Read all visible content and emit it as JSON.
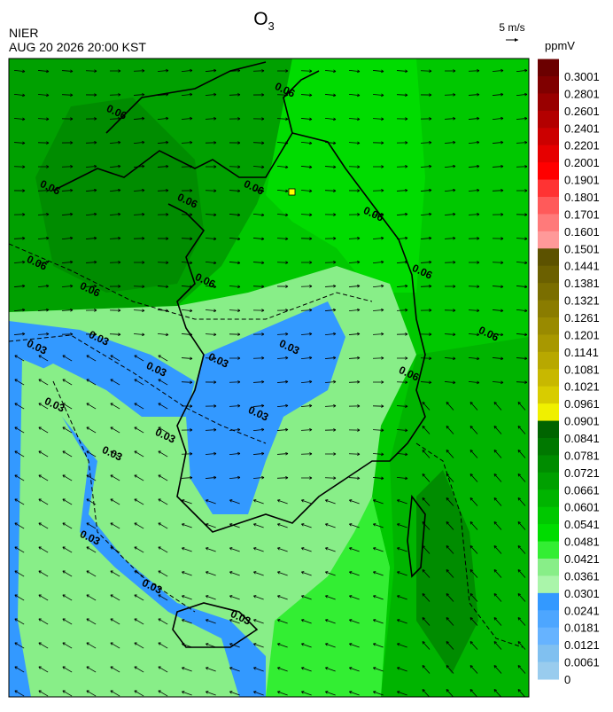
{
  "header": {
    "title": {
      "main": "O",
      "subscript": "3"
    },
    "agency": "NIER",
    "datetime": "AUG 20 2026 20:00 KST",
    "wind_scale": "5 m/s"
  },
  "legend": {
    "unit": "ppmV",
    "levels": [
      {
        "label": "0.3001",
        "color": "#6b0000"
      },
      {
        "label": "0.2801",
        "color": "#800000"
      },
      {
        "label": "0.2601",
        "color": "#990000"
      },
      {
        "label": "0.2401",
        "color": "#b30000"
      },
      {
        "label": "0.2201",
        "color": "#cc0000"
      },
      {
        "label": "0.2001",
        "color": "#e60000"
      },
      {
        "label": "0.1901",
        "color": "#ff0000"
      },
      {
        "label": "0.1801",
        "color": "#ff3333"
      },
      {
        "label": "0.1701",
        "color": "#ff5a5a"
      },
      {
        "label": "0.1601",
        "color": "#ff7a7a"
      },
      {
        "label": "0.1501",
        "color": "#ff9999"
      },
      {
        "label": "0.1441",
        "color": "#5c5200"
      },
      {
        "label": "0.1381",
        "color": "#6b6000"
      },
      {
        "label": "0.1321",
        "color": "#7a6e00"
      },
      {
        "label": "0.1261",
        "color": "#8a7c00"
      },
      {
        "label": "0.1201",
        "color": "#998a00"
      },
      {
        "label": "0.1141",
        "color": "#a89800"
      },
      {
        "label": "0.1081",
        "color": "#b8a800"
      },
      {
        "label": "0.1021",
        "color": "#c8b800"
      },
      {
        "label": "0.0961",
        "color": "#d8cc00"
      },
      {
        "label": "0.0901",
        "color": "#f0f000"
      },
      {
        "label": "0.0841",
        "color": "#006400"
      },
      {
        "label": "0.0781",
        "color": "#007800"
      },
      {
        "label": "0.0721",
        "color": "#008c00"
      },
      {
        "label": "0.0661",
        "color": "#00a000"
      },
      {
        "label": "0.0601",
        "color": "#00b400"
      },
      {
        "label": "0.0541",
        "color": "#00c800"
      },
      {
        "label": "0.0481",
        "color": "#00dc00"
      },
      {
        "label": "0.0421",
        "color": "#33ee33"
      },
      {
        "label": "0.0361",
        "color": "#88ee88"
      },
      {
        "label": "0.0301",
        "color": "#aaf5aa"
      },
      {
        "label": "0.0241",
        "color": "#3399ff"
      },
      {
        "label": "0.0181",
        "color": "#4da6ff"
      },
      {
        "label": "0.0121",
        "color": "#66b3ff"
      },
      {
        "label": "0.0061",
        "color": "#80c0f0"
      },
      {
        "label": "0",
        "color": "#99ccee"
      }
    ]
  },
  "contour_labels": [
    "0.06",
    "0.06",
    "0.06",
    "0.06",
    "0.06",
    "0.06",
    "0.06",
    "0.06",
    "0.06",
    "0.06",
    "0.06",
    "0.06",
    "0.03",
    "0.03",
    "0.03",
    "0.03",
    "0.03",
    "0.03",
    "0.03",
    "0.03",
    "0.03",
    "0.03",
    "0.03",
    "0.03"
  ]
}
